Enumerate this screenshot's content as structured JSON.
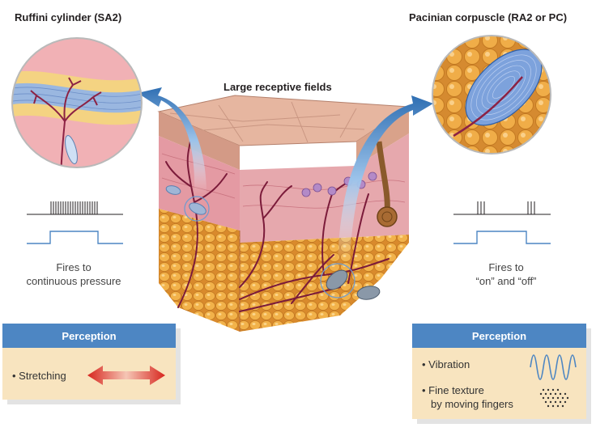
{
  "left": {
    "title": "Ruffini cylinder (SA2)",
    "caption_line1": "Fires to",
    "caption_line2": "continuous pressure",
    "perception_header": "Perception",
    "items": [
      "Stretching"
    ]
  },
  "right": {
    "title": "Pacinian corpuscle (RA2 or PC)",
    "caption_line1": "Fires to",
    "caption_line2": "“on” and “off”",
    "perception_header": "Perception",
    "items": [
      "Vibration",
      "Fine texture",
      "by moving fingers"
    ]
  },
  "center": {
    "title": "Large receptive fields"
  },
  "colors": {
    "header_blue": "#4d86c3",
    "panel_cream": "#f8e4bf",
    "nerve": "#7b1b3a",
    "fat": "#e9a43c",
    "dermis": "#e4a0a6"
  },
  "icons": [
    "double-arrow-icon",
    "sine-wave-icon",
    "dot-texture-icon",
    "curved-arrow-icon"
  ]
}
